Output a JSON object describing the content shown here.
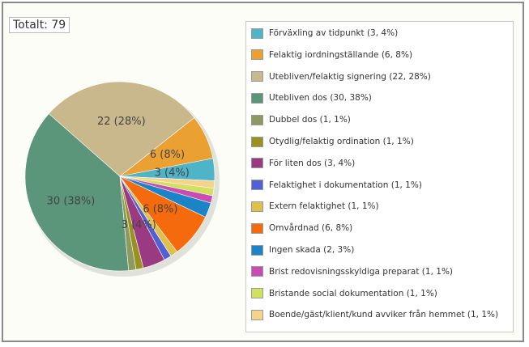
{
  "chart_data": {
    "type": "pie",
    "total_label": "Totalt: 79",
    "slices": [
      {
        "name": "Förväxling av tidpunkt",
        "value": 3,
        "percent": 4,
        "label": "3 (4%)",
        "color": "#4fb4c8"
      },
      {
        "name": "Felaktig iordningställande",
        "value": 6,
        "percent": 8,
        "label": "6 (8%)",
        "color": "#eba032"
      },
      {
        "name": "Utebliven/felaktig signering",
        "value": 22,
        "percent": 28,
        "label": "22 (28%)",
        "color": "#c9b88c"
      },
      {
        "name": "Utebliven dos",
        "value": 30,
        "percent": 38,
        "label": "30 (38%)",
        "color": "#5b967b"
      },
      {
        "name": "Dubbel dos",
        "value": 1,
        "percent": 1,
        "label": "",
        "color": "#8c9a60"
      },
      {
        "name": "Otydlig/felaktig ordination",
        "value": 1,
        "percent": 1,
        "label": "",
        "color": "#9a9220"
      },
      {
        "name": "För liten dos",
        "value": 3,
        "percent": 4,
        "label": "3 (4%)",
        "color": "#993a82"
      },
      {
        "name": "Felaktighet i dokumentation",
        "value": 1,
        "percent": 1,
        "label": "",
        "color": "#5060d6"
      },
      {
        "name": "Extern felaktighet",
        "value": 1,
        "percent": 1,
        "label": "",
        "color": "#e0c04c"
      },
      {
        "name": "Omvårdnad",
        "value": 6,
        "percent": 8,
        "label": "6 (8%)",
        "color": "#f56a0c"
      },
      {
        "name": "Ingen skada",
        "value": 2,
        "percent": 3,
        "label": "",
        "color": "#1a84c6"
      },
      {
        "name": "Brist redovisningsskyldiga preparat",
        "value": 1,
        "percent": 1,
        "label": "",
        "color": "#c84cb4"
      },
      {
        "name": "Bristande social dokumentation",
        "value": 1,
        "percent": 1,
        "label": "",
        "color": "#d2e060"
      },
      {
        "name": "Boende/gäst/klient/kund avviker från hemmet",
        "value": 1,
        "percent": 1,
        "label": "",
        "color": "#f6d38a"
      }
    ],
    "legend": {
      "position": "right",
      "items": [
        "Förväxling av tidpunkt (3, 4%)",
        "Felaktig iordningställande (6, 8%)",
        "Utebliven/felaktig signering (22, 28%)",
        "Utebliven dos (30, 38%)",
        "Dubbel dos (1, 1%)",
        "Otydlig/felaktig ordination (1, 1%)",
        "För liten dos (3, 4%)",
        "Felaktighet i dokumentation (1, 1%)",
        "Extern felaktighet (1, 1%)",
        "Omvårdnad (6, 8%)",
        "Ingen skada (2, 3%)",
        "Brist redovisningsskyldiga preparat (1, 1%)",
        "Bristande social dokumentation (1, 1%)",
        "Boende/gäst/klient/kund avviker från hemmet (1, 1%)"
      ]
    }
  }
}
